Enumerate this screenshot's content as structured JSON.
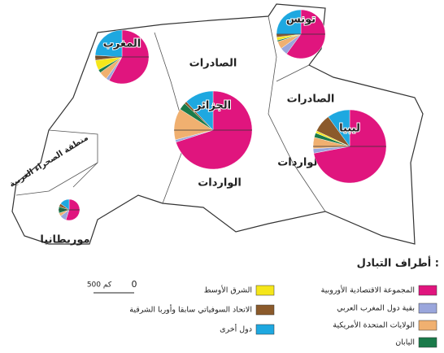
{
  "legend": {
    "title": "أطراف التبادل :",
    "items": [
      {
        "label": "المجموعة الاقتصادية الأوروبية",
        "color": "#e0157e"
      },
      {
        "label": "بقية دول المغرب العربي",
        "color": "#9aa6dc"
      },
      {
        "label": "الولايات المتحدة الأمريكية",
        "color": "#f0b070"
      },
      {
        "label": "اليابان",
        "color": "#1a7a4a"
      },
      {
        "label": "الشرق الأوسط",
        "color": "#f5e61a"
      },
      {
        "label": "الاتحاد السوفياتي سابقا وأوربا الشرقية",
        "color": "#8b5a2b"
      },
      {
        "label": "دول أخرى",
        "color": "#1ea8e0"
      }
    ]
  },
  "pies": [
    {
      "country": "الجزائر",
      "slices": [
        70,
        1,
        13,
        3,
        0,
        1,
        12
      ]
    },
    {
      "country": "ليبيا",
      "slices": [
        72,
        2,
        5,
        2,
        1,
        8,
        10
      ]
    },
    {
      "country": "تونس",
      "slices": [
        60,
        5,
        5,
        1,
        2,
        2,
        25
      ]
    },
    {
      "country": "المغرب",
      "slices": [
        58,
        2,
        5,
        2,
        6,
        3,
        24
      ]
    },
    {
      "country": "موريطانيا",
      "slices": [
        55,
        10,
        5,
        10,
        0,
        5,
        15
      ]
    }
  ],
  "labels": {
    "algeria_exports": "الصادرات",
    "algeria_imports": "الواردات",
    "libya_exports": "الصادرات",
    "libya_imports": "الواردات",
    "western_sahara": "منطقة الصحراء الغربية"
  },
  "scale": {
    "zero": 0,
    "length": "500 كم"
  }
}
